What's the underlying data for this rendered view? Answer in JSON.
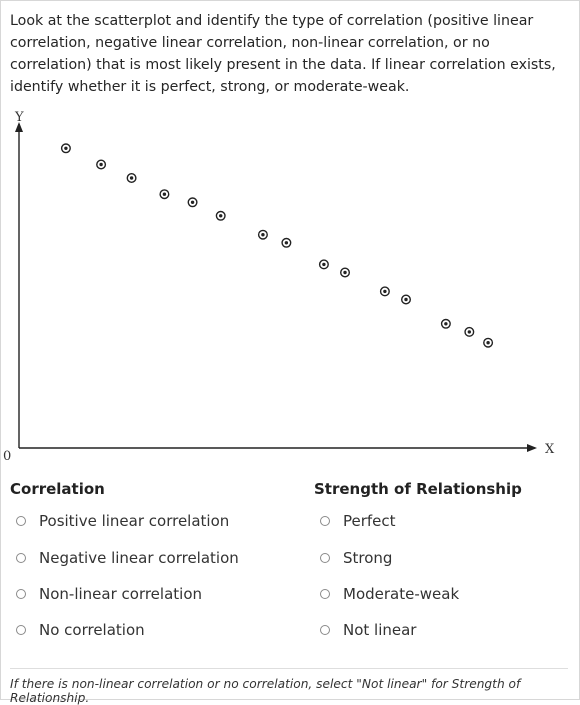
{
  "question": {
    "text": "Look at the scatterplot and identify the type of correlation (positive linear correlation, negative linear correlation, non-linear correlation, or no correlation) that is most likely present in the data. If linear correlation exists, identify whether it is perfect, strong, or moderate-weak."
  },
  "chart_data": {
    "type": "scatter",
    "xlabel": "X",
    "ylabel": "Y",
    "origin_label": "0",
    "xlim": [
      0,
      22
    ],
    "ylim": [
      0,
      12
    ],
    "points": [
      {
        "x": 2.0,
        "y": 11.1
      },
      {
        "x": 3.5,
        "y": 10.5
      },
      {
        "x": 4.8,
        "y": 10.0
      },
      {
        "x": 6.2,
        "y": 9.4
      },
      {
        "x": 7.4,
        "y": 9.1
      },
      {
        "x": 8.6,
        "y": 8.6
      },
      {
        "x": 10.4,
        "y": 7.9
      },
      {
        "x": 11.4,
        "y": 7.6
      },
      {
        "x": 13.0,
        "y": 6.8
      },
      {
        "x": 13.9,
        "y": 6.5
      },
      {
        "x": 15.6,
        "y": 5.8
      },
      {
        "x": 16.5,
        "y": 5.5
      },
      {
        "x": 18.2,
        "y": 4.6
      },
      {
        "x": 19.2,
        "y": 4.3
      },
      {
        "x": 20.0,
        "y": 3.9
      }
    ],
    "colors": {
      "axis": "#222222",
      "marker": "#222222"
    }
  },
  "correlation": {
    "title": "Correlation",
    "options": [
      "Positive linear correlation",
      "Negative linear correlation",
      "Non-linear correlation",
      "No correlation"
    ]
  },
  "strength": {
    "title": "Strength of Relationship",
    "options": [
      "Perfect",
      "Strong",
      "Moderate-weak",
      "Not linear"
    ]
  },
  "footnote": {
    "text": "If there is non-linear correlation or no correlation, select \"Not linear\" for Strength of Relationship."
  }
}
